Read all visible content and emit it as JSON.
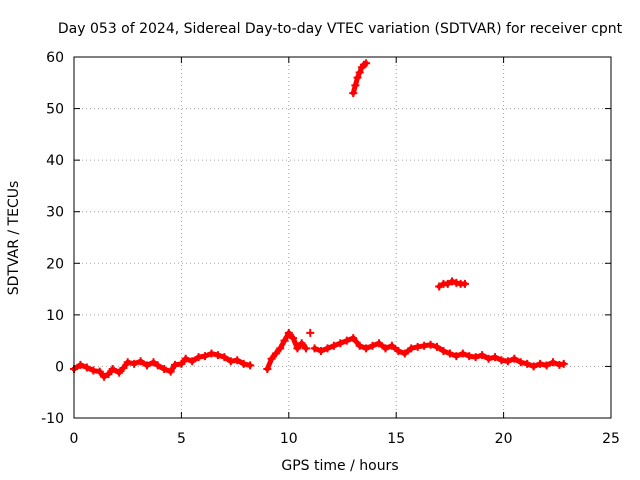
{
  "chart_data": {
    "type": "scatter",
    "title": "Day 053 of 2024, Sidereal Day-to-day VTEC variation (SDTVAR) for receiver cpnt",
    "xlabel": "GPS time / hours",
    "ylabel": "SDTVAR / TECUs",
    "xlim": [
      0,
      25
    ],
    "ylim": [
      -10,
      60
    ],
    "xticks": [
      0,
      5,
      10,
      15,
      20,
      25
    ],
    "yticks": [
      -10,
      0,
      10,
      20,
      30,
      40,
      50,
      60
    ],
    "grid": true,
    "marker": "+",
    "series": [
      {
        "name": "SDTVAR",
        "color": "#ff0000",
        "x": [
          0.0,
          0.3,
          0.6,
          0.9,
          1.2,
          1.4,
          1.6,
          1.8,
          2.1,
          2.3,
          2.5,
          2.8,
          3.1,
          3.4,
          3.7,
          3.9,
          4.2,
          4.5,
          4.7,
          5.0,
          5.2,
          5.5,
          5.8,
          6.1,
          6.4,
          6.7,
          7.0,
          7.3,
          7.6,
          7.9,
          8.2,
          9.0,
          9.2,
          9.4,
          9.6,
          9.8,
          10.0,
          10.2,
          10.4,
          10.6,
          10.8,
          11.0,
          11.2,
          11.5,
          11.8,
          12.1,
          12.4,
          12.7,
          13.0,
          13.3,
          13.6,
          13.9,
          14.2,
          14.5,
          14.8,
          15.1,
          15.4,
          15.7,
          16.0,
          16.3,
          16.6,
          16.9,
          17.2,
          17.5,
          17.8,
          18.1,
          18.4,
          18.7,
          19.0,
          19.3,
          19.6,
          19.9,
          20.2,
          20.5,
          20.8,
          21.1,
          21.4,
          21.7,
          22.0,
          22.3,
          22.6,
          22.8,
          13.0,
          13.1,
          13.2,
          13.3,
          13.4,
          13.5,
          13.6,
          17.0,
          17.2,
          17.4,
          17.6,
          17.8,
          18.0,
          18.2
        ],
        "y": [
          -0.5,
          0.3,
          -0.2,
          -0.8,
          -1.0,
          -2.0,
          -1.5,
          -0.5,
          -1.2,
          -0.3,
          0.8,
          0.5,
          1.0,
          0.2,
          0.8,
          0.2,
          -0.5,
          -1.0,
          0.3,
          0.5,
          1.5,
          1.0,
          1.8,
          2.0,
          2.5,
          2.2,
          1.8,
          1.0,
          1.2,
          0.5,
          0.2,
          -0.5,
          1.5,
          2.5,
          3.5,
          5.0,
          6.5,
          5.5,
          3.5,
          4.5,
          3.5,
          6.5,
          3.5,
          3.0,
          3.5,
          4.0,
          4.5,
          5.0,
          5.5,
          4.0,
          3.5,
          4.0,
          4.5,
          3.5,
          4.0,
          3.0,
          2.5,
          3.5,
          3.8,
          4.0,
          4.2,
          3.8,
          3.0,
          2.5,
          2.0,
          2.5,
          2.0,
          1.8,
          2.2,
          1.5,
          1.8,
          1.2,
          1.0,
          1.5,
          0.8,
          0.5,
          0.0,
          0.5,
          0.2,
          0.8,
          0.3,
          0.5,
          53.0,
          54.5,
          56.0,
          57.0,
          58.0,
          58.5,
          58.8,
          15.5,
          16.0,
          16.0,
          16.5,
          16.2,
          16.0,
          16.0
        ]
      }
    ]
  }
}
